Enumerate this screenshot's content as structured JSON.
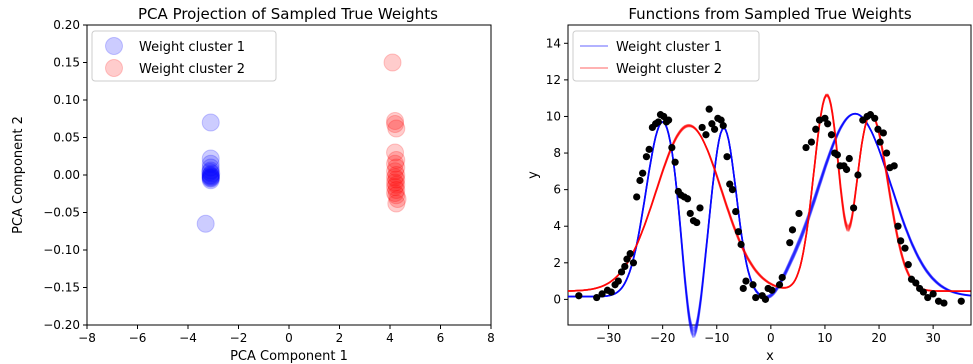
{
  "chart_data": [
    {
      "type": "scatter",
      "title": "PCA Projection of Sampled True Weights",
      "xlabel": "PCA Component 1",
      "ylabel": "PCA Component 2",
      "xlim": [
        -8,
        8
      ],
      "ylim": [
        -0.2,
        0.2
      ],
      "xticks": [
        "−8",
        "−6",
        "−4",
        "−2",
        "0",
        "2",
        "4",
        "6",
        "8"
      ],
      "yticks": [
        "−0.20",
        "−0.15",
        "−0.10",
        "−0.05",
        "0.00",
        "0.05",
        "0.10",
        "0.15",
        "0.20"
      ],
      "legend": {
        "position": "top-left"
      },
      "grid": false,
      "series": [
        {
          "name": "Weight cluster 1",
          "color": "#0000ff",
          "alpha": 0.2,
          "x": [
            -3.1,
            -3.1,
            -3.1,
            -3.1,
            -3.1,
            -3.12,
            -3.08,
            -3.1,
            -3.11,
            -3.09,
            -3.1,
            -3.1,
            -3.1,
            -3.1,
            -3.3
          ],
          "y": [
            0.07,
            0.022,
            0.015,
            0.01,
            0.006,
            0.004,
            0.002,
            0.0,
            -0.001,
            -0.002,
            -0.003,
            -0.004,
            -0.005,
            -0.007,
            -0.065
          ]
        },
        {
          "name": "Weight cluster 2",
          "color": "#ff0000",
          "alpha": 0.2,
          "x": [
            4.1,
            4.2,
            4.2,
            4.25,
            4.2,
            4.25,
            4.2,
            4.25,
            4.2,
            4.25,
            4.2,
            4.25,
            4.2,
            4.25,
            4.2,
            4.25,
            4.2,
            4.25,
            4.3,
            4.25
          ],
          "y": [
            0.15,
            0.072,
            0.068,
            0.062,
            0.03,
            0.02,
            0.015,
            0.01,
            0.005,
            0.0,
            -0.003,
            -0.006,
            -0.01,
            -0.013,
            -0.016,
            -0.02,
            -0.024,
            -0.027,
            -0.032,
            -0.038
          ]
        }
      ]
    },
    {
      "type": "line",
      "title": "Functions from Sampled True Weights",
      "xlabel": "x",
      "ylabel": "y",
      "xlim": [
        -37.5,
        37
      ],
      "ylim": [
        -1.4,
        15
      ],
      "xticks": [
        "−30",
        "−20",
        "−10",
        "0",
        "10",
        "20",
        "30"
      ],
      "yticks": [
        "0",
        "2",
        "4",
        "6",
        "8",
        "10",
        "12",
        "14"
      ],
      "legend": {
        "position": "top-left"
      },
      "grid": false,
      "series": [
        {
          "name": "Weight cluster 1",
          "color": "#0000ff"
        },
        {
          "name": "Weight cluster 2",
          "color": "#ff0000"
        }
      ],
      "sample_points": {
        "color": "#000000",
        "x": [
          -35.5,
          -32.2,
          -31.2,
          -30.2,
          -29.5,
          -28.8,
          -28.2,
          -27.6,
          -27.0,
          -26.6,
          -26.0,
          -25.4,
          -24.8,
          -24.2,
          -23.7,
          -23.0,
          -22.5,
          -21.9,
          -21.3,
          -20.8,
          -20.4,
          -19.8,
          -19.3,
          -18.9,
          -18.3,
          -17.7,
          -17.1,
          -16.6,
          -16.0,
          -15.4,
          -14.9,
          -14.3,
          -13.7,
          -13.1,
          -12.7,
          -12.0,
          -11.4,
          -10.9,
          -10.4,
          -9.8,
          -9.2,
          -8.8,
          -8.1,
          -7.6,
          -7.1,
          -6.5,
          -6.0,
          -5.5,
          -5.1,
          -4.6,
          -3.3,
          -2.8,
          -1.6,
          -1.0,
          -0.5,
          0.2,
          1.6,
          2.1,
          3.5,
          4.0,
          5.2,
          6.5,
          7.5,
          8.3,
          9.0,
          10.0,
          10.5,
          11.2,
          11.8,
          12.3,
          12.8,
          13.5,
          14.0,
          14.5,
          15.3,
          16.1,
          17.0,
          17.8,
          18.4,
          19.2,
          19.8,
          20.2,
          20.8,
          21.4,
          22.0,
          22.8,
          23.5,
          24.0,
          24.8,
          25.4,
          26.0,
          26.8,
          27.5,
          28.2,
          29.0,
          30.0,
          31.0,
          32.0,
          35.2
        ],
        "y": [
          0.2,
          0.1,
          0.3,
          0.5,
          0.4,
          0.8,
          1.0,
          1.5,
          1.8,
          2.2,
          2.5,
          2.0,
          5.6,
          6.5,
          6.9,
          7.8,
          8.2,
          9.4,
          9.6,
          9.7,
          10.1,
          10.0,
          9.7,
          9.8,
          8.3,
          7.5,
          5.9,
          5.7,
          5.6,
          5.5,
          4.7,
          4.3,
          4.2,
          5.0,
          9.4,
          9.0,
          10.4,
          9.6,
          9.3,
          9.9,
          9.8,
          9.5,
          7.8,
          6.3,
          6.0,
          4.8,
          3.7,
          3.0,
          0.6,
          1.0,
          0.8,
          0.1,
          0.2,
          0.0,
          0.6,
          0.5,
          0.8,
          1.2,
          3.1,
          3.8,
          4.7,
          8.3,
          8.6,
          9.3,
          9.8,
          9.9,
          9.6,
          9.0,
          8.0,
          7.9,
          7.3,
          7.3,
          7.1,
          7.7,
          5.0,
          6.8,
          9.8,
          10.0,
          10.1,
          9.9,
          9.3,
          8.6,
          9.1,
          8.0,
          7.2,
          7.3,
          4.0,
          3.2,
          2.8,
          1.9,
          1.1,
          0.9,
          0.6,
          0.4,
          0.1,
          0.3,
          -0.1,
          -0.2,
          -0.1
        ]
      }
    }
  ]
}
